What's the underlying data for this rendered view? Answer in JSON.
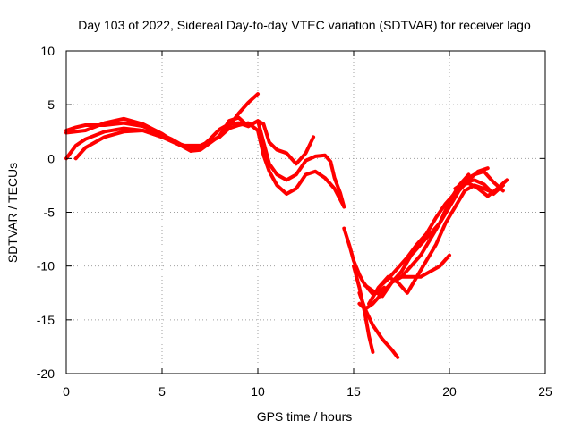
{
  "chart_data": {
    "type": "line",
    "title": "Day 103 of 2022, Sidereal Day-to-day VTEC variation (SDTVAR) for receiver lago",
    "xlabel": "GPS time / hours",
    "ylabel": "SDTVAR / TECUs",
    "xlim": [
      0,
      25
    ],
    "ylim": [
      -20,
      10
    ],
    "xticks": [
      0,
      5,
      10,
      15,
      20,
      25
    ],
    "yticks": [
      -20,
      -15,
      -10,
      -5,
      0,
      5,
      10
    ],
    "grid": true,
    "legend": "none",
    "series_color": "#ff0000",
    "series": [
      {
        "x": [
          0.0,
          0.5,
          1.0,
          2.0,
          3.0,
          4.0,
          5.0,
          5.5,
          6.0,
          6.5,
          7.0,
          8.0,
          8.5,
          9.0,
          9.5,
          10.0
        ],
        "y": [
          2.6,
          2.9,
          3.1,
          3.1,
          3.3,
          3.0,
          2.2,
          1.8,
          1.3,
          1.0,
          1.2,
          2.0,
          3.0,
          4.2,
          5.2,
          6.0
        ]
      },
      {
        "x": [
          0.0,
          1.0,
          2.0,
          2.5,
          3.0,
          4.0,
          5.0,
          5.5,
          6.0,
          6.5,
          7.0,
          8.0,
          8.5,
          9.0,
          9.5,
          10.0,
          10.3,
          10.6,
          11.0,
          11.5,
          12.0,
          12.5,
          12.9
        ],
        "y": [
          2.4,
          2.6,
          3.3,
          3.5,
          3.7,
          3.2,
          2.3,
          1.7,
          1.2,
          0.7,
          0.8,
          2.1,
          3.5,
          3.8,
          3.0,
          3.5,
          3.2,
          1.5,
          0.8,
          0.5,
          -0.5,
          0.5,
          2.0
        ]
      },
      {
        "x": [
          0.0,
          0.5,
          1.0,
          2.0,
          3.0,
          4.0,
          5.0,
          6.0,
          6.5,
          7.0,
          7.5,
          8.0,
          8.5,
          9.0,
          9.5,
          10.0,
          10.3,
          10.6,
          11.0,
          11.5,
          12.0,
          12.5,
          13.0,
          13.5,
          13.8,
          14.0,
          14.3,
          14.5
        ],
        "y": [
          0.0,
          1.2,
          1.8,
          2.5,
          2.8,
          2.6,
          2.0,
          1.2,
          0.7,
          1.0,
          1.8,
          2.7,
          3.2,
          3.3,
          3.0,
          3.5,
          1.5,
          -0.5,
          -1.5,
          -2.0,
          -1.5,
          -0.2,
          0.2,
          0.3,
          -0.3,
          -1.8,
          -3.2,
          -4.5
        ]
      },
      {
        "x": [
          0.5,
          1.0,
          2.0,
          3.0,
          4.0,
          5.0,
          6.0,
          7.0,
          8.0,
          8.5,
          9.0,
          9.5,
          10.0,
          10.3,
          10.6,
          11.0,
          11.5,
          12.0,
          12.5,
          13.0,
          13.5,
          14.0,
          14.5
        ],
        "y": [
          0.0,
          1.0,
          2.0,
          2.5,
          2.6,
          2.0,
          1.2,
          1.2,
          2.0,
          2.8,
          3.1,
          3.3,
          2.6,
          0.3,
          -1.2,
          -2.5,
          -3.3,
          -2.8,
          -1.5,
          -1.2,
          -1.8,
          -2.8,
          -4.5
        ]
      },
      {
        "x": [
          14.5,
          14.8,
          15.0,
          15.3,
          15.5,
          15.8,
          16.0,
          16.3,
          16.6
        ],
        "y": [
          -6.5,
          -8.2,
          -9.5,
          -10.8,
          -11.5,
          -12.2,
          -12.6,
          -12.4,
          -12.0
        ]
      },
      {
        "x": [
          15.0,
          15.3,
          15.6,
          15.8,
          16.0
        ],
        "y": [
          -10.0,
          -12.0,
          -14.5,
          -16.5,
          -18.0
        ]
      },
      {
        "x": [
          15.3,
          15.6,
          16.0,
          16.5,
          17.0,
          17.3
        ],
        "y": [
          -12.5,
          -14.0,
          -15.5,
          -16.8,
          -17.8,
          -18.5
        ]
      },
      {
        "x": [
          15.3,
          15.6,
          16.0,
          16.5,
          17.0,
          17.5,
          18.0,
          18.5,
          19.0,
          19.5,
          20.0
        ],
        "y": [
          -13.5,
          -14.0,
          -13.5,
          -12.5,
          -11.5,
          -11.0,
          -11.0,
          -11.0,
          -10.5,
          -10.0,
          -9.0
        ]
      },
      {
        "x": [
          15.6,
          16.0,
          16.5,
          17.0,
          17.5,
          18.0,
          18.5,
          19.0,
          19.5,
          20.0,
          20.5,
          21.0
        ],
        "y": [
          -11.8,
          -12.3,
          -12.8,
          -11.5,
          -10.5,
          -9.0,
          -8.0,
          -7.0,
          -6.0,
          -4.0,
          -2.5,
          -1.5
        ]
      },
      {
        "x": [
          15.8,
          16.3,
          16.8,
          17.3,
          17.8,
          18.3,
          18.8,
          19.3,
          19.8,
          20.3,
          20.8,
          21.3,
          21.8,
          22.3,
          22.8
        ],
        "y": [
          -13.5,
          -12.0,
          -11.0,
          -11.5,
          -12.5,
          -11.0,
          -9.5,
          -8.0,
          -6.0,
          -4.5,
          -3.0,
          -2.5,
          -2.8,
          -3.2,
          -2.5
        ]
      },
      {
        "x": [
          16.3,
          16.8,
          17.3,
          17.8,
          18.3,
          18.8,
          19.3,
          19.8,
          20.3,
          20.8,
          21.3,
          21.8,
          22.3,
          22.8
        ],
        "y": [
          -12.0,
          -11.2,
          -10.2,
          -9.2,
          -8.0,
          -7.0,
          -5.5,
          -4.2,
          -3.2,
          -2.0,
          -1.5,
          -1.2,
          -2.2,
          -3.0
        ]
      },
      {
        "x": [
          17.0,
          17.5,
          18.0,
          18.5,
          19.0,
          19.5,
          20.0,
          20.5,
          21.0,
          21.5,
          22.0
        ],
        "y": [
          -11.5,
          -11.0,
          -10.0,
          -9.0,
          -7.5,
          -6.0,
          -4.5,
          -3.0,
          -2.0,
          -1.2,
          -0.9
        ]
      },
      {
        "x": [
          20.3,
          20.8,
          21.3,
          21.8,
          22.3,
          22.8
        ],
        "y": [
          -2.8,
          -2.2,
          -2.0,
          -2.4,
          -3.3,
          -2.5
        ]
      },
      {
        "x": [
          20.5,
          21.0,
          21.5,
          22.0,
          22.5,
          23.0
        ],
        "y": [
          -2.5,
          -2.3,
          -2.8,
          -3.5,
          -2.8,
          -2.0
        ]
      }
    ]
  }
}
